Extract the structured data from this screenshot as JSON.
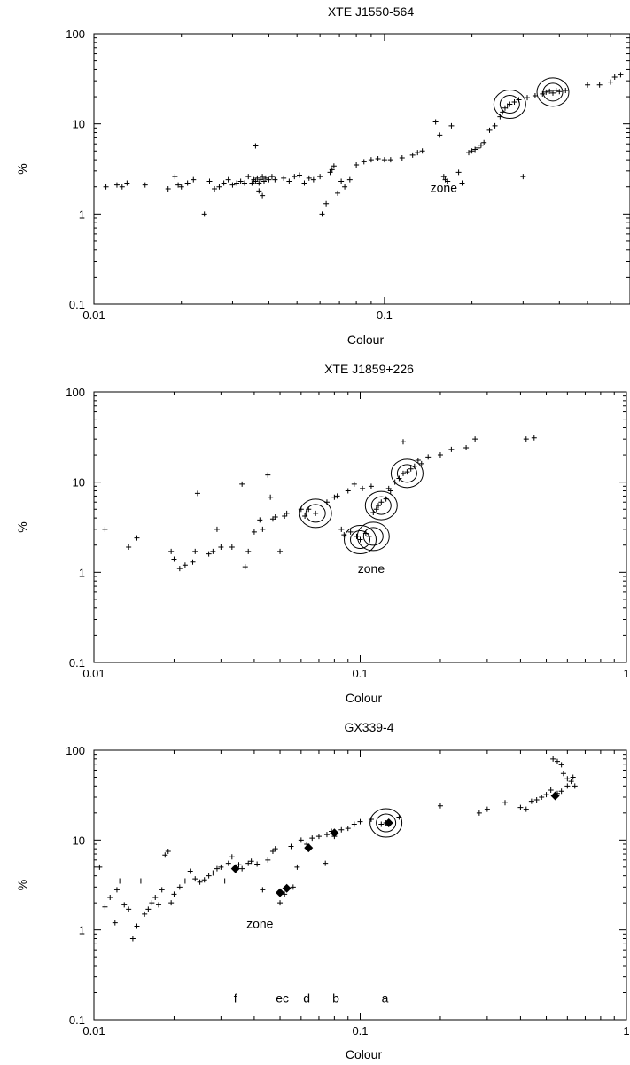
{
  "chart_data": [
    {
      "type": "scatter",
      "title": "XTE J1550-564",
      "xlabel": "Colour",
      "ylabel": "%",
      "xscale": "log",
      "yscale": "log",
      "xlim": [
        0.01,
        0.7
      ],
      "ylim": [
        0.1,
        100
      ],
      "xticks": [
        {
          "v": 0.01,
          "label": "0.01"
        },
        {
          "v": 0.1,
          "label": "0.1"
        }
      ],
      "yticks": [
        {
          "v": 0.1,
          "label": "0.1"
        },
        {
          "v": 1,
          "label": "1"
        },
        {
          "v": 10,
          "label": "10"
        },
        {
          "v": 100,
          "label": "100"
        }
      ],
      "points": [
        [
          0.011,
          2.0
        ],
        [
          0.012,
          2.1
        ],
        [
          0.0125,
          2.0
        ],
        [
          0.013,
          2.2
        ],
        [
          0.015,
          2.1
        ],
        [
          0.018,
          1.9
        ],
        [
          0.019,
          2.6
        ],
        [
          0.0195,
          2.1
        ],
        [
          0.02,
          2.0
        ],
        [
          0.021,
          2.2
        ],
        [
          0.022,
          2.4
        ],
        [
          0.024,
          1.0
        ],
        [
          0.025,
          2.3
        ],
        [
          0.026,
          1.9
        ],
        [
          0.027,
          2.0
        ],
        [
          0.028,
          2.2
        ],
        [
          0.029,
          2.4
        ],
        [
          0.03,
          2.1
        ],
        [
          0.031,
          2.2
        ],
        [
          0.032,
          2.3
        ],
        [
          0.033,
          2.2
        ],
        [
          0.034,
          2.6
        ],
        [
          0.035,
          2.2
        ],
        [
          0.0355,
          2.4
        ],
        [
          0.036,
          2.3
        ],
        [
          0.0365,
          2.5
        ],
        [
          0.037,
          2.2
        ],
        [
          0.0375,
          2.4
        ],
        [
          0.038,
          2.6
        ],
        [
          0.0385,
          2.3
        ],
        [
          0.039,
          2.5
        ],
        [
          0.04,
          2.4
        ],
        [
          0.041,
          2.6
        ],
        [
          0.042,
          2.4
        ],
        [
          0.036,
          5.7
        ],
        [
          0.037,
          1.8
        ],
        [
          0.038,
          1.6
        ],
        [
          0.045,
          2.5
        ],
        [
          0.047,
          2.3
        ],
        [
          0.049,
          2.6
        ],
        [
          0.051,
          2.7
        ],
        [
          0.053,
          2.2
        ],
        [
          0.055,
          2.5
        ],
        [
          0.057,
          2.4
        ],
        [
          0.06,
          2.6
        ],
        [
          0.061,
          1.0
        ],
        [
          0.063,
          1.3
        ],
        [
          0.065,
          2.9
        ],
        [
          0.066,
          3.1
        ],
        [
          0.067,
          3.4
        ],
        [
          0.069,
          1.7
        ],
        [
          0.071,
          2.3
        ],
        [
          0.073,
          2.0
        ],
        [
          0.076,
          2.4
        ],
        [
          0.08,
          3.5
        ],
        [
          0.085,
          3.8
        ],
        [
          0.09,
          4.0
        ],
        [
          0.095,
          4.1
        ],
        [
          0.1,
          4.0
        ],
        [
          0.105,
          4.0
        ],
        [
          0.115,
          4.2
        ],
        [
          0.125,
          4.5
        ],
        [
          0.13,
          4.8
        ],
        [
          0.135,
          5.0
        ],
        [
          0.15,
          10.5
        ],
        [
          0.155,
          7.5
        ],
        [
          0.16,
          2.6
        ],
        [
          0.162,
          2.4
        ],
        [
          0.165,
          2.3
        ],
        [
          0.17,
          9.5
        ],
        [
          0.18,
          2.9
        ],
        [
          0.185,
          2.2
        ],
        [
          0.195,
          4.8
        ],
        [
          0.2,
          5.0
        ],
        [
          0.205,
          5.2
        ],
        [
          0.21,
          5.4
        ],
        [
          0.215,
          5.8
        ],
        [
          0.22,
          6.2
        ],
        [
          0.23,
          8.5
        ],
        [
          0.24,
          9.5
        ],
        [
          0.25,
          12.0
        ],
        [
          0.255,
          13.5
        ],
        [
          0.26,
          15.0
        ],
        [
          0.265,
          15.8
        ],
        [
          0.27,
          16.5
        ],
        [
          0.28,
          17.5
        ],
        [
          0.29,
          18.5
        ],
        [
          0.3,
          2.6
        ],
        [
          0.31,
          19.5
        ],
        [
          0.33,
          20.5
        ],
        [
          0.35,
          21.5
        ],
        [
          0.36,
          22.5
        ],
        [
          0.37,
          23.0
        ],
        [
          0.38,
          22.0
        ],
        [
          0.39,
          23.5
        ],
        [
          0.4,
          22.8
        ],
        [
          0.42,
          23.5
        ],
        [
          0.5,
          27.0
        ],
        [
          0.55,
          27.0
        ],
        [
          0.6,
          29.0
        ],
        [
          0.62,
          33.0
        ],
        [
          0.65,
          35.0
        ]
      ],
      "rings": [
        [
          0.27,
          16.5
        ],
        [
          0.38,
          22.5
        ]
      ],
      "diamonds": [],
      "annotations": [
        {
          "text": "zone",
          "x": 0.16,
          "y": 1.75
        }
      ]
    },
    {
      "type": "scatter",
      "title": "XTE J1859+226",
      "xlabel": "Colour",
      "ylabel": "%",
      "xscale": "log",
      "yscale": "log",
      "xlim": [
        0.01,
        1
      ],
      "ylim": [
        0.1,
        100
      ],
      "xticks": [
        {
          "v": 0.01,
          "label": "0.01"
        },
        {
          "v": 0.1,
          "label": "0.1"
        },
        {
          "v": 1,
          "label": "1"
        }
      ],
      "yticks": [
        {
          "v": 0.1,
          "label": "0.1"
        },
        {
          "v": 1,
          "label": "1"
        },
        {
          "v": 10,
          "label": "10"
        },
        {
          "v": 100,
          "label": "100"
        }
      ],
      "points": [
        [
          0.011,
          3.0
        ],
        [
          0.0135,
          1.9
        ],
        [
          0.0145,
          2.4
        ],
        [
          0.0195,
          1.7
        ],
        [
          0.02,
          1.4
        ],
        [
          0.021,
          1.1
        ],
        [
          0.022,
          1.2
        ],
        [
          0.0235,
          1.3
        ],
        [
          0.0245,
          7.5
        ],
        [
          0.024,
          1.7
        ],
        [
          0.027,
          1.6
        ],
        [
          0.028,
          1.7
        ],
        [
          0.029,
          3.0
        ],
        [
          0.03,
          1.9
        ],
        [
          0.033,
          1.9
        ],
        [
          0.036,
          9.5
        ],
        [
          0.037,
          1.15
        ],
        [
          0.038,
          1.7
        ],
        [
          0.04,
          2.8
        ],
        [
          0.042,
          3.8
        ],
        [
          0.043,
          3.0
        ],
        [
          0.045,
          12.0
        ],
        [
          0.046,
          6.8
        ],
        [
          0.047,
          3.9
        ],
        [
          0.048,
          4.1
        ],
        [
          0.05,
          1.7
        ],
        [
          0.052,
          4.2
        ],
        [
          0.053,
          4.5
        ],
        [
          0.06,
          5.0
        ],
        [
          0.062,
          4.2
        ],
        [
          0.064,
          5.0
        ],
        [
          0.068,
          4.5
        ],
        [
          0.075,
          6.0
        ],
        [
          0.08,
          6.8
        ],
        [
          0.082,
          7.0
        ],
        [
          0.085,
          3.0
        ],
        [
          0.087,
          2.6
        ],
        [
          0.09,
          8.0
        ],
        [
          0.092,
          2.8
        ],
        [
          0.095,
          9.5
        ],
        [
          0.097,
          2.5
        ],
        [
          0.1,
          2.3
        ],
        [
          0.102,
          8.5
        ],
        [
          0.105,
          2.7
        ],
        [
          0.108,
          2.5
        ],
        [
          0.11,
          9.0
        ],
        [
          0.112,
          4.6
        ],
        [
          0.115,
          5.0
        ],
        [
          0.117,
          5.5
        ],
        [
          0.12,
          6.0
        ],
        [
          0.125,
          6.5
        ],
        [
          0.128,
          8.5
        ],
        [
          0.13,
          8.0
        ],
        [
          0.135,
          10.0
        ],
        [
          0.14,
          11.0
        ],
        [
          0.145,
          12.5
        ],
        [
          0.15,
          13.0
        ],
        [
          0.145,
          28.0
        ],
        [
          0.155,
          14.0
        ],
        [
          0.16,
          15.0
        ],
        [
          0.165,
          17.5
        ],
        [
          0.17,
          16.0
        ],
        [
          0.18,
          19.0
        ],
        [
          0.2,
          20.0
        ],
        [
          0.22,
          23.0
        ],
        [
          0.25,
          24.0
        ],
        [
          0.27,
          30.0
        ],
        [
          0.42,
          30.0
        ],
        [
          0.45,
          31.0
        ]
      ],
      "rings": [
        [
          0.068,
          4.5
        ],
        [
          0.1,
          2.3
        ],
        [
          0.112,
          2.5
        ],
        [
          0.12,
          5.5
        ],
        [
          0.15,
          12.5
        ]
      ],
      "diamonds": [],
      "annotations": [
        {
          "text": "zone",
          "x": 0.11,
          "y": 0.98
        }
      ]
    },
    {
      "type": "scatter",
      "title": "GX339-4",
      "xlabel": "Colour",
      "ylabel": "%",
      "xscale": "log",
      "yscale": "log",
      "xlim": [
        0.01,
        1
      ],
      "ylim": [
        0.1,
        100
      ],
      "xticks": [
        {
          "v": 0.01,
          "label": "0.01"
        },
        {
          "v": 0.1,
          "label": "0.1"
        },
        {
          "v": 1,
          "label": "1"
        }
      ],
      "yticks": [
        {
          "v": 0.1,
          "label": "0.1"
        },
        {
          "v": 1,
          "label": "1"
        },
        {
          "v": 10,
          "label": "10"
        },
        {
          "v": 100,
          "label": "100"
        }
      ],
      "points": [
        [
          0.0105,
          5.0
        ],
        [
          0.011,
          1.8
        ],
        [
          0.0115,
          2.3
        ],
        [
          0.012,
          1.2
        ],
        [
          0.0122,
          2.8
        ],
        [
          0.0125,
          3.5
        ],
        [
          0.013,
          1.9
        ],
        [
          0.0135,
          1.7
        ],
        [
          0.014,
          0.8
        ],
        [
          0.0145,
          1.1
        ],
        [
          0.015,
          3.5
        ],
        [
          0.0155,
          1.5
        ],
        [
          0.016,
          1.7
        ],
        [
          0.0165,
          2.0
        ],
        [
          0.017,
          2.3
        ],
        [
          0.0175,
          1.9
        ],
        [
          0.018,
          2.8
        ],
        [
          0.0185,
          6.8
        ],
        [
          0.019,
          7.5
        ],
        [
          0.0195,
          2.0
        ],
        [
          0.02,
          2.5
        ],
        [
          0.021,
          3.0
        ],
        [
          0.022,
          3.5
        ],
        [
          0.023,
          4.5
        ],
        [
          0.024,
          3.7
        ],
        [
          0.025,
          3.4
        ],
        [
          0.026,
          3.6
        ],
        [
          0.027,
          4.0
        ],
        [
          0.028,
          4.3
        ],
        [
          0.029,
          4.8
        ],
        [
          0.03,
          5.0
        ],
        [
          0.031,
          3.5
        ],
        [
          0.032,
          5.5
        ],
        [
          0.033,
          6.5
        ],
        [
          0.034,
          5.0
        ],
        [
          0.035,
          5.3
        ],
        [
          0.036,
          4.8
        ],
        [
          0.038,
          5.5
        ],
        [
          0.039,
          5.8
        ],
        [
          0.041,
          5.4
        ],
        [
          0.043,
          2.8
        ],
        [
          0.045,
          6.0
        ],
        [
          0.047,
          7.5
        ],
        [
          0.048,
          8.0
        ],
        [
          0.05,
          2.0
        ],
        [
          0.052,
          2.5
        ],
        [
          0.055,
          8.5
        ],
        [
          0.056,
          3.0
        ],
        [
          0.058,
          5.0
        ],
        [
          0.06,
          10.0
        ],
        [
          0.063,
          9.0
        ],
        [
          0.066,
          10.5
        ],
        [
          0.07,
          11.0
        ],
        [
          0.074,
          5.5
        ],
        [
          0.075,
          11.5
        ],
        [
          0.078,
          12.5
        ],
        [
          0.08,
          11.0
        ],
        [
          0.085,
          13.0
        ],
        [
          0.09,
          13.5
        ],
        [
          0.095,
          15.0
        ],
        [
          0.1,
          16.0
        ],
        [
          0.11,
          17.0
        ],
        [
          0.12,
          15.0
        ],
        [
          0.125,
          15.5
        ],
        [
          0.14,
          18.0
        ],
        [
          0.2,
          24.0
        ],
        [
          0.28,
          20.0
        ],
        [
          0.3,
          22.0
        ],
        [
          0.35,
          26.0
        ],
        [
          0.4,
          23.0
        ],
        [
          0.42,
          22.0
        ],
        [
          0.44,
          27.0
        ],
        [
          0.46,
          28.0
        ],
        [
          0.48,
          30.0
        ],
        [
          0.5,
          32.0
        ],
        [
          0.52,
          36.0
        ],
        [
          0.53,
          80.0
        ],
        [
          0.55,
          75.0
        ],
        [
          0.57,
          69.0
        ],
        [
          0.58,
          55.0
        ],
        [
          0.6,
          48.0
        ],
        [
          0.62,
          45.0
        ],
        [
          0.63,
          50.0
        ],
        [
          0.64,
          40.0
        ],
        [
          0.55,
          33.0
        ],
        [
          0.57,
          35.0
        ],
        [
          0.6,
          40.0
        ]
      ],
      "rings": [
        [
          0.125,
          15.5
        ]
      ],
      "diamonds": [
        [
          0.034,
          4.8
        ],
        [
          0.05,
          2.6
        ],
        [
          0.053,
          2.9
        ],
        [
          0.064,
          8.2
        ],
        [
          0.08,
          12.0
        ],
        [
          0.128,
          15.5
        ],
        [
          0.54,
          31.0
        ]
      ],
      "annotations": [
        {
          "text": "zone",
          "x": 0.042,
          "y": 1.05
        },
        {
          "text": "f",
          "x": 0.034,
          "y": 0.155
        },
        {
          "text": "ec",
          "x": 0.051,
          "y": 0.155
        },
        {
          "text": "d",
          "x": 0.063,
          "y": 0.155
        },
        {
          "text": "b",
          "x": 0.081,
          "y": 0.155
        },
        {
          "text": "a",
          "x": 0.124,
          "y": 0.155
        }
      ]
    }
  ]
}
